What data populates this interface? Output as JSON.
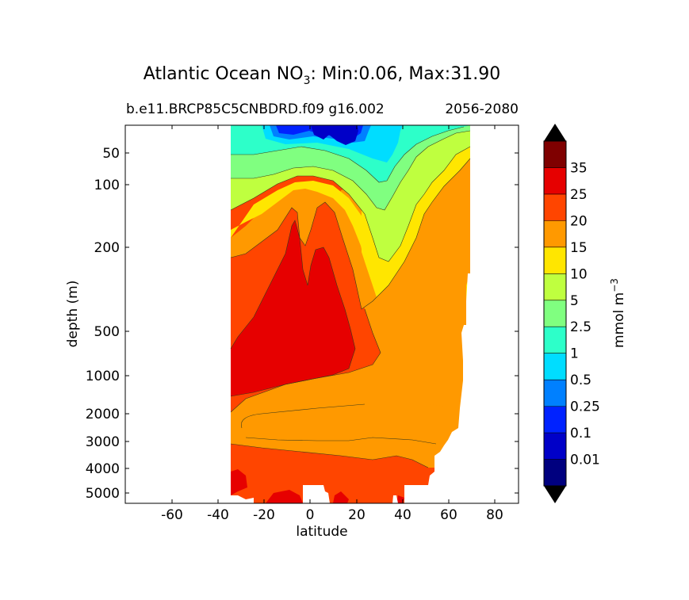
{
  "chart_data": {
    "type": "contour",
    "title_main": "Atlantic Ocean NO",
    "title_sub": "3",
    "title_rest": ": Min:0.06, Max:31.90",
    "subtitle_left": "b.e11.BRCP85C5CNBDRD.f09 g16.002",
    "subtitle_right": "2056-2080",
    "xlabel": "latitude",
    "ylabel": "depth (m)",
    "xlim": [
      -80,
      90
    ],
    "xticks": [
      -60,
      -40,
      -20,
      0,
      20,
      40,
      60,
      80
    ],
    "yticks": [
      50,
      100,
      200,
      500,
      1000,
      2000,
      3000,
      4000,
      5000
    ],
    "ylim": [
      15,
      5500
    ],
    "y_scale": "nonlinear (depth, increasing downward)",
    "data_lat_range": [
      -34,
      68
    ],
    "colorbar": {
      "label_main": "mmol m",
      "label_exp": "−3",
      "levels": [
        "0.01",
        "0.1",
        "0.25",
        "0.5",
        "1",
        "2.5",
        "5",
        "10",
        "15",
        "20",
        "25",
        "35"
      ],
      "colors": [
        "#00007f",
        "#0000c8",
        "#0022ff",
        "#0080ff",
        "#00ddff",
        "#2dffc9",
        "#80ff80",
        "#bfff3f",
        "#ffe600",
        "#ff9900",
        "#ff4500",
        "#e60000",
        "#7f0000"
      ],
      "extend": "both"
    },
    "contour_bands": [
      {
        "level": "bottom-15",
        "color": "#ff9900"
      },
      {
        "level": "15-20",
        "color": "#ff4500"
      },
      {
        "level": "20-25",
        "color": "#e60000"
      }
    ]
  }
}
